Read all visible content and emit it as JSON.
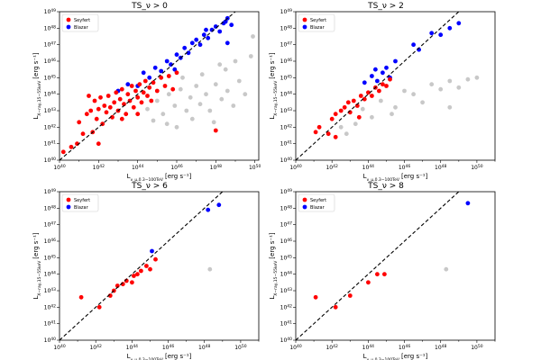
{
  "figure": {
    "xlabel": "L_{ν_μ,0.3−100TeV} [erg s^{-1}]",
    "ylabel": "L_{X−ray,15−55keV} [erg s^{-1}]",
    "xlim": [
      40,
      51
    ],
    "ylim": [
      40,
      49
    ],
    "legend": [
      "Seyfert",
      "Blazar"
    ],
    "colors": {
      "seyfert": "#ff0000",
      "blazar": "#0000ff",
      "unmatched": "#c8c8c8"
    }
  },
  "chart_data": [
    {
      "type": "scatter",
      "title": "TS_ν > 0",
      "log_scale": true,
      "xlim": [
        40,
        50.2
      ],
      "ylim": [
        40,
        49
      ],
      "reference_line": "y = x (dashed)",
      "series": [
        {
          "name": "Seyfert",
          "points": [
            [
              40.2,
              40.5
            ],
            [
              40.6,
              40.8
            ],
            [
              40.9,
              41.0
            ],
            [
              41.2,
              41.6
            ],
            [
              41.0,
              42.3
            ],
            [
              41.4,
              42.8
            ],
            [
              41.6,
              43.0
            ],
            [
              41.8,
              43.6
            ],
            [
              41.9,
              42.5
            ],
            [
              42.0,
              43.1
            ],
            [
              42.1,
              43.8
            ],
            [
              42.2,
              42.2
            ],
            [
              42.3,
              43.3
            ],
            [
              42.4,
              42.9
            ],
            [
              42.5,
              43.9
            ],
            [
              42.6,
              43.2
            ],
            [
              42.7,
              42.6
            ],
            [
              42.8,
              43.5
            ],
            [
              42.9,
              44.1
            ],
            [
              43.0,
              43.0
            ],
            [
              43.1,
              43.7
            ],
            [
              43.2,
              44.3
            ],
            [
              43.3,
              43.4
            ],
            [
              43.4,
              42.8
            ],
            [
              43.5,
              44.0
            ],
            [
              43.6,
              43.6
            ],
            [
              43.7,
              44.5
            ],
            [
              43.8,
              43.2
            ],
            [
              43.9,
              44.2
            ],
            [
              44.0,
              43.8
            ],
            [
              44.1,
              44.6
            ],
            [
              44.2,
              43.5
            ],
            [
              44.3,
              44.1
            ],
            [
              44.4,
              44.8
            ],
            [
              44.5,
              43.9
            ],
            [
              44.6,
              44.4
            ],
            [
              44.7,
              43.6
            ],
            [
              44.8,
              44.7
            ],
            [
              45.0,
              44.2
            ],
            [
              45.2,
              45.0
            ],
            [
              45.4,
              44.5
            ],
            [
              45.6,
              45.1
            ],
            [
              45.8,
              44.3
            ],
            [
              46.0,
              45.3
            ],
            [
              41.7,
              41.7
            ],
            [
              42.0,
              41.0
            ],
            [
              41.5,
              43.9
            ],
            [
              43.2,
              42.5
            ],
            [
              44.0,
              42.8
            ],
            [
              48.0,
              41.8
            ]
          ]
        },
        {
          "name": "Blazar",
          "points": [
            [
              43.0,
              44.2
            ],
            [
              43.5,
              44.6
            ],
            [
              44.0,
              44.5
            ],
            [
              44.3,
              45.3
            ],
            [
              44.6,
              45.0
            ],
            [
              44.9,
              45.6
            ],
            [
              45.2,
              45.4
            ],
            [
              45.5,
              46.0
            ],
            [
              45.7,
              45.8
            ],
            [
              46.0,
              46.4
            ],
            [
              46.2,
              46.2
            ],
            [
              46.4,
              46.8
            ],
            [
              46.6,
              46.5
            ],
            [
              46.8,
              47.1
            ],
            [
              47.0,
              47.3
            ],
            [
              47.2,
              47.0
            ],
            [
              47.4,
              47.6
            ],
            [
              47.6,
              47.4
            ],
            [
              47.8,
              47.9
            ],
            [
              48.0,
              48.1
            ],
            [
              48.2,
              47.8
            ],
            [
              48.4,
              48.3
            ],
            [
              48.6,
              48.6
            ],
            [
              48.8,
              48.2
            ],
            [
              47.5,
              47.9
            ],
            [
              48.5,
              48.4
            ],
            [
              48.6,
              47.1
            ],
            [
              45.9,
              45.5
            ]
          ]
        },
        {
          "name": "",
          "points": [
            [
              44.5,
              43.1
            ],
            [
              45.0,
              43.6
            ],
            [
              45.3,
              42.8
            ],
            [
              45.6,
              44.0
            ],
            [
              45.9,
              43.3
            ],
            [
              46.2,
              44.3
            ],
            [
              46.5,
              43.0
            ],
            [
              46.7,
              43.8
            ],
            [
              47.0,
              44.5
            ],
            [
              47.2,
              43.4
            ],
            [
              47.5,
              44.0
            ],
            [
              47.7,
              43.0
            ],
            [
              48.0,
              44.6
            ],
            [
              48.3,
              43.7
            ],
            [
              48.6,
              44.2
            ],
            [
              48.9,
              43.3
            ],
            [
              49.2,
              44.8
            ],
            [
              49.5,
              44.0
            ],
            [
              49.8,
              46.3
            ],
            [
              49.9,
              47.5
            ],
            [
              49.0,
              46.0
            ],
            [
              48.5,
              45.5
            ],
            [
              47.9,
              42.3
            ],
            [
              46.8,
              42.5
            ],
            [
              46.0,
              42.0
            ],
            [
              45.5,
              42.2
            ],
            [
              44.8,
              42.4
            ],
            [
              46.3,
              45.0
            ],
            [
              47.3,
              45.2
            ],
            [
              48.2,
              45.8
            ]
          ]
        }
      ]
    },
    {
      "type": "scatter",
      "title": "TS_ν > 2",
      "log_scale": true,
      "xlim": [
        40,
        51
      ],
      "ylim": [
        40,
        49
      ],
      "reference_line": "y = x (dashed)",
      "series": [
        {
          "name": "Seyfert",
          "points": [
            [
              41.1,
              41.7
            ],
            [
              41.3,
              42.0
            ],
            [
              41.8,
              41.6
            ],
            [
              42.0,
              42.5
            ],
            [
              42.2,
              42.8
            ],
            [
              42.5,
              43.0
            ],
            [
              42.7,
              43.2
            ],
            [
              42.9,
              43.5
            ],
            [
              43.0,
              42.9
            ],
            [
              43.2,
              43.6
            ],
            [
              43.4,
              43.3
            ],
            [
              43.6,
              43.9
            ],
            [
              43.8,
              43.7
            ],
            [
              44.0,
              44.1
            ],
            [
              44.2,
              43.9
            ],
            [
              44.4,
              44.4
            ],
            [
              44.6,
              44.2
            ],
            [
              44.8,
              44.6
            ],
            [
              45.0,
              44.5
            ],
            [
              45.2,
              44.9
            ],
            [
              43.5,
              42.6
            ],
            [
              42.2,
              41.4
            ]
          ]
        },
        {
          "name": "Blazar",
          "points": [
            [
              44.2,
              45.1
            ],
            [
              44.5,
              44.8
            ],
            [
              44.8,
              45.3
            ],
            [
              45.0,
              45.6
            ],
            [
              45.2,
              45.0
            ],
            [
              45.5,
              46.0
            ],
            [
              46.5,
              47.0
            ],
            [
              46.8,
              46.7
            ],
            [
              47.5,
              47.7
            ],
            [
              48.0,
              47.6
            ],
            [
              48.5,
              48.0
            ],
            [
              49.0,
              48.3
            ],
            [
              43.8,
              44.7
            ],
            [
              44.4,
              45.5
            ]
          ]
        },
        {
          "name": "",
          "points": [
            [
              42.5,
              42.0
            ],
            [
              42.8,
              41.6
            ],
            [
              43.3,
              42.2
            ],
            [
              43.7,
              43.1
            ],
            [
              44.2,
              42.6
            ],
            [
              44.7,
              43.6
            ],
            [
              45.5,
              43.2
            ],
            [
              46.0,
              44.2
            ],
            [
              46.5,
              44.0
            ],
            [
              47.0,
              43.5
            ],
            [
              47.5,
              44.6
            ],
            [
              48.0,
              44.3
            ],
            [
              48.5,
              44.8
            ],
            [
              49.0,
              44.4
            ],
            [
              49.5,
              44.9
            ],
            [
              50.0,
              45.0
            ],
            [
              48.5,
              43.2
            ],
            [
              45.3,
              42.8
            ]
          ]
        }
      ]
    },
    {
      "type": "scatter",
      "title": "TS_ν > 6",
      "log_scale": true,
      "xlim": [
        40,
        51
      ],
      "ylim": [
        40,
        49
      ],
      "reference_line": "y = x (dashed)",
      "series": [
        {
          "name": "Seyfert",
          "points": [
            [
              41.2,
              42.6
            ],
            [
              42.2,
              42.0
            ],
            [
              42.8,
              42.7
            ],
            [
              43.0,
              43.0
            ],
            [
              43.2,
              43.3
            ],
            [
              43.5,
              43.4
            ],
            [
              43.7,
              43.6
            ],
            [
              44.0,
              43.5
            ],
            [
              44.1,
              43.9
            ],
            [
              44.5,
              44.2
            ],
            [
              44.8,
              44.5
            ],
            [
              45.0,
              44.3
            ],
            [
              45.3,
              44.9
            ],
            [
              44.3,
              44.0
            ]
          ]
        },
        {
          "name": "Blazar",
          "points": [
            [
              45.1,
              45.4
            ],
            [
              48.2,
              47.9
            ],
            [
              48.8,
              48.2
            ]
          ]
        },
        {
          "name": "",
          "points": [
            [
              48.3,
              44.3
            ]
          ]
        }
      ]
    },
    {
      "type": "scatter",
      "title": "TS_ν > 8",
      "log_scale": true,
      "xlim": [
        40,
        51
      ],
      "ylim": [
        40,
        49
      ],
      "reference_line": "y = x (dashed)",
      "series": [
        {
          "name": "Seyfert",
          "points": [
            [
              41.1,
              42.6
            ],
            [
              42.2,
              42.0
            ],
            [
              43.0,
              42.7
            ],
            [
              44.0,
              43.5
            ],
            [
              44.5,
              44.0
            ],
            [
              44.9,
              44.0
            ]
          ]
        },
        {
          "name": "Blazar",
          "points": [
            [
              49.5,
              48.3
            ]
          ]
        },
        {
          "name": "",
          "points": [
            [
              48.3,
              44.3
            ]
          ]
        }
      ]
    }
  ]
}
